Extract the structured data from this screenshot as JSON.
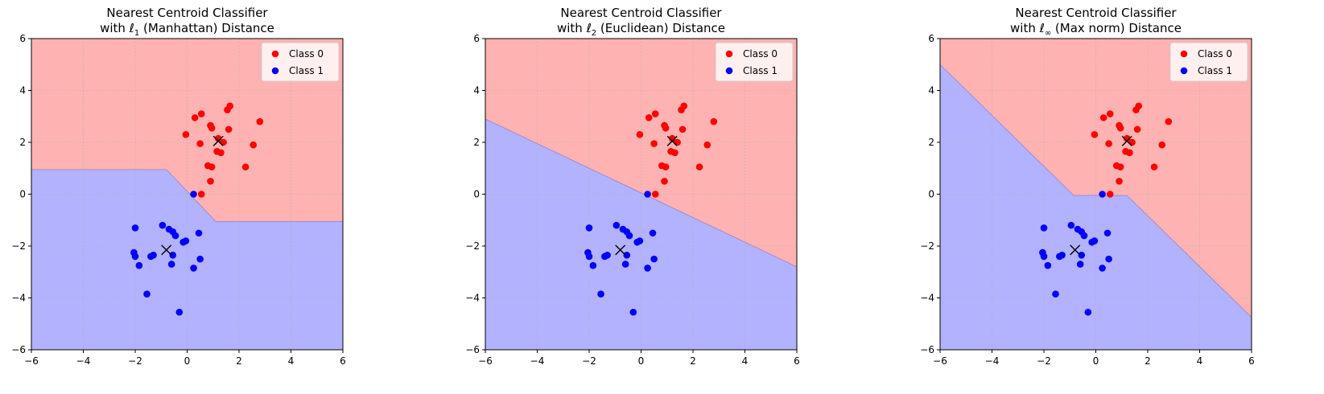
{
  "chart_data": [
    {
      "type": "scatter",
      "title_line1": "Nearest Centroid Classifier",
      "title_pre": "with ℓ",
      "title_sub": "1",
      "title_post": " (Manhattan) Distance",
      "xlim": [
        -6,
        6
      ],
      "ylim": [
        -6,
        6
      ],
      "xticks": [
        -6,
        -4,
        -2,
        0,
        2,
        4,
        6
      ],
      "yticks": [
        -6,
        -4,
        -2,
        0,
        2,
        4,
        6
      ],
      "grid": true,
      "legend_position": "top-right",
      "boundary": [
        [
          -6,
          0.95
        ],
        [
          -0.8,
          0.95
        ],
        [
          1.1,
          -1.05
        ],
        [
          6,
          -1.05
        ]
      ],
      "centroids": [
        [
          1.2,
          2.05
        ],
        [
          -0.8,
          -2.15
        ]
      ]
    },
    {
      "type": "scatter",
      "title_line1": "Nearest Centroid Classifier",
      "title_pre": "with ℓ",
      "title_sub": "2",
      "title_post": " (Euclidean) Distance",
      "xlim": [
        -6,
        6
      ],
      "ylim": [
        -6,
        6
      ],
      "xticks": [
        -6,
        -4,
        -2,
        0,
        2,
        4,
        6
      ],
      "yticks": [
        -6,
        -4,
        -2,
        0,
        2,
        4,
        6
      ],
      "grid": true,
      "legend_position": "top-right",
      "boundary": [
        [
          -6,
          2.9
        ],
        [
          6,
          -2.8
        ]
      ],
      "centroids": [
        [
          1.2,
          2.05
        ],
        [
          -0.8,
          -2.15
        ]
      ]
    },
    {
      "type": "scatter",
      "title_line1": "Nearest Centroid Classifier",
      "title_pre": "with ℓ",
      "title_sub": "∞",
      "title_post": " (Max norm) Distance",
      "xlim": [
        -6,
        6
      ],
      "ylim": [
        -6,
        6
      ],
      "xticks": [
        -6,
        -4,
        -2,
        0,
        2,
        4,
        6
      ],
      "yticks": [
        -6,
        -4,
        -2,
        0,
        2,
        4,
        6
      ],
      "grid": true,
      "legend_position": "top-right",
      "boundary": [
        [
          -6,
          5.0
        ],
        [
          -0.85,
          -0.05
        ],
        [
          1.2,
          -0.05
        ],
        [
          6,
          -4.75
        ]
      ],
      "centroids": [
        [
          1.2,
          2.05
        ],
        [
          -0.8,
          -2.15
        ]
      ]
    }
  ],
  "series": [
    {
      "name": "Class 0",
      "color": "#ff0000",
      "points": [
        [
          0.55,
          3.1
        ],
        [
          0.3,
          2.95
        ],
        [
          1.65,
          3.4
        ],
        [
          1.55,
          3.25
        ],
        [
          0.9,
          2.65
        ],
        [
          0.95,
          2.55
        ],
        [
          1.6,
          2.5
        ],
        [
          2.8,
          2.8
        ],
        [
          -0.05,
          2.3
        ],
        [
          1.2,
          2.15
        ],
        [
          1.4,
          2.0
        ],
        [
          0.5,
          1.95
        ],
        [
          1.15,
          1.65
        ],
        [
          1.3,
          1.6
        ],
        [
          2.55,
          1.9
        ],
        [
          0.8,
          1.1
        ],
        [
          0.95,
          1.05
        ],
        [
          2.25,
          1.05
        ],
        [
          0.9,
          0.5
        ],
        [
          0.55,
          0.0
        ]
      ]
    },
    {
      "name": "Class 1",
      "color": "#0000ff",
      "points": [
        [
          0.25,
          0.0
        ],
        [
          -2.0,
          -1.3
        ],
        [
          -0.95,
          -1.2
        ],
        [
          -0.7,
          -1.35
        ],
        [
          -0.55,
          -1.45
        ],
        [
          -0.45,
          -1.6
        ],
        [
          0.45,
          -1.5
        ],
        [
          -0.15,
          -1.85
        ],
        [
          -0.05,
          -1.8
        ],
        [
          -2.05,
          -2.25
        ],
        [
          -2.0,
          -2.4
        ],
        [
          -1.4,
          -2.4
        ],
        [
          -1.3,
          -2.35
        ],
        [
          -0.55,
          -2.35
        ],
        [
          0.5,
          -2.5
        ],
        [
          -1.85,
          -2.75
        ],
        [
          -0.6,
          -2.7
        ],
        [
          0.25,
          -2.85
        ],
        [
          -1.55,
          -3.85
        ],
        [
          -0.3,
          -4.55
        ]
      ]
    }
  ],
  "colors": {
    "region_class0": "#ffb2b2",
    "region_class1": "#b2b2ff",
    "centroid_marker": "#000000"
  }
}
